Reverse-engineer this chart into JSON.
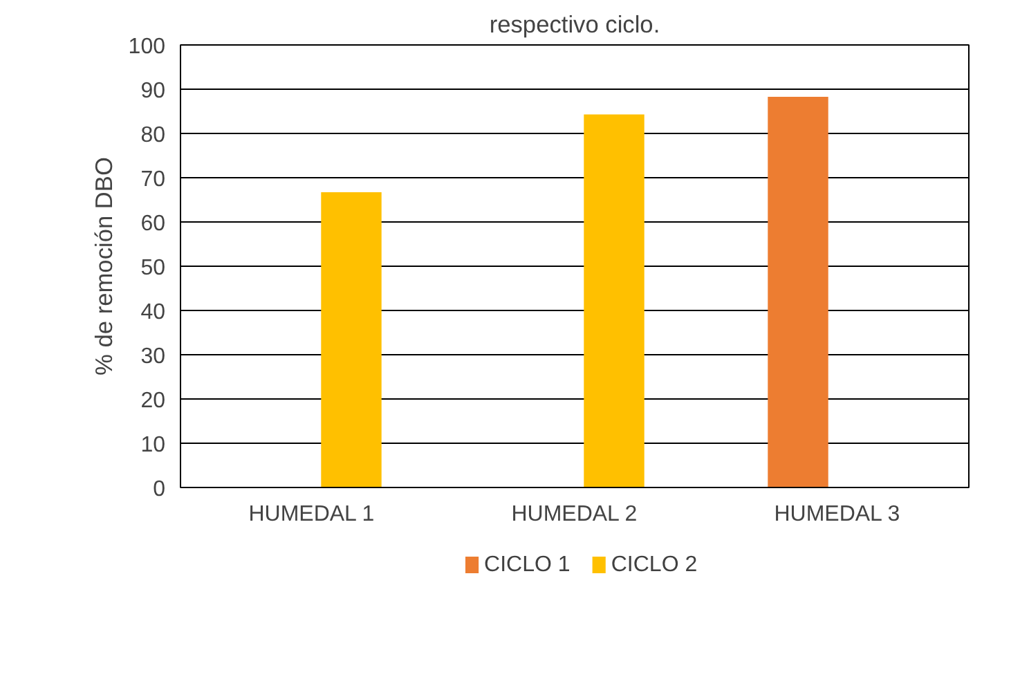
{
  "chart_data": {
    "type": "bar",
    "title": "respectivo ciclo.",
    "ylabel": "% de remoción DBO",
    "categories": [
      "HUMEDAL 1",
      "HUMEDAL 2",
      "HUMEDAL 3"
    ],
    "series": [
      {
        "name": "CICLO 1",
        "color": "#ed7d31",
        "values": [
          null,
          null,
          88.3
        ]
      },
      {
        "name": "CICLO 2",
        "color": "#ffc000",
        "values": [
          66.7,
          84.3,
          null
        ]
      }
    ],
    "ylim": [
      0,
      100
    ],
    "yticks": [
      0,
      10,
      20,
      30,
      40,
      50,
      60,
      70,
      80,
      90,
      100
    ],
    "grid": "y",
    "legend": "bottom"
  }
}
